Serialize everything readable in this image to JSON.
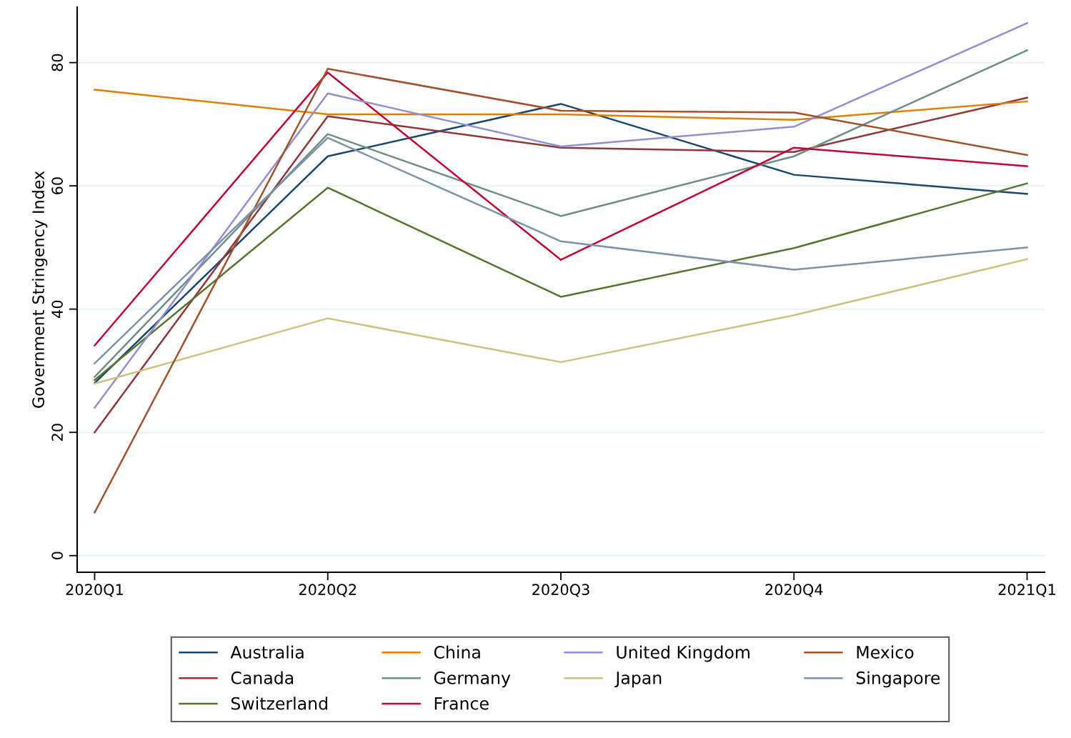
{
  "chart_data": {
    "type": "line",
    "ylabel": "Government Stringency Index",
    "categories": [
      "2020Q1",
      "2020Q2",
      "2020Q3",
      "2020Q4",
      "2021Q1"
    ],
    "ylim": [
      -2.7,
      89
    ],
    "yticks": [
      0,
      20,
      40,
      60,
      80
    ],
    "grid": "y",
    "legend": "bottom",
    "line_style": "solid",
    "marker": "none",
    "series": [
      {
        "name": "Australia",
        "color": "#1a476f",
        "values": [
          28,
          64.8,
          73.3,
          61.8,
          58.7
        ]
      },
      {
        "name": "Canada",
        "color": "#90353b",
        "values": [
          20,
          71.3,
          66.2,
          65.5,
          74.3
        ]
      },
      {
        "name": "Switzerland",
        "color": "#55752f",
        "values": [
          28.5,
          59.7,
          42,
          49.9,
          60.4
        ]
      },
      {
        "name": "China",
        "color": "#e37e00",
        "values": [
          75.6,
          71.6,
          71.6,
          70.7,
          73.7
        ]
      },
      {
        "name": "Germany",
        "color": "#6e8e84",
        "values": [
          29,
          68.4,
          55.1,
          64.8,
          82
        ]
      },
      {
        "name": "France",
        "color": "#c10534",
        "values": [
          34.1,
          78.4,
          48,
          66.2,
          63.2
        ]
      },
      {
        "name": "United Kingdom",
        "color": "#938dd2",
        "values": [
          24,
          75,
          66.4,
          69.6,
          86.4
        ]
      },
      {
        "name": "Japan",
        "color": "#cac27e",
        "values": [
          27.9,
          38.5,
          31.4,
          39,
          48.1
        ]
      },
      {
        "name": "Mexico",
        "color": "#a0522d",
        "values": [
          7,
          79,
          72.2,
          71.9,
          65
        ]
      },
      {
        "name": "Singapore",
        "color": "#7b92a8",
        "values": [
          31.2,
          67.8,
          51,
          46.4,
          50
        ]
      }
    ]
  }
}
